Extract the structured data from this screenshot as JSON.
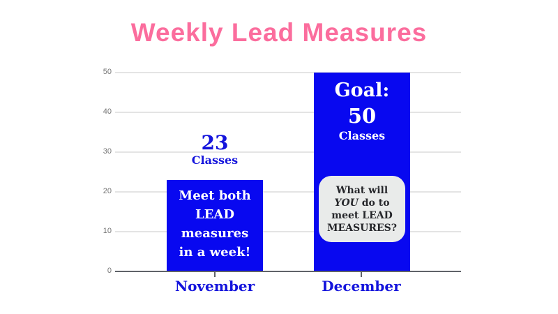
{
  "slide": {
    "title": "Weekly Lead Measures"
  },
  "chart_data": {
    "type": "bar",
    "title": "Weekly Lead Measures",
    "categories": [
      "November",
      "December"
    ],
    "values": [
      23,
      50
    ],
    "ylim": [
      0,
      50
    ],
    "yticks": [
      0,
      10,
      20,
      30,
      40,
      50
    ],
    "grid": true,
    "legend": false,
    "annotations": [
      {
        "category": "November",
        "above_bar": "23 Classes",
        "inside_bar": "Meet both LEAD measures in a week!"
      },
      {
        "category": "December",
        "inside_bar_top": "Goal: 50 Classes",
        "inside_bar_bubble": "What will YOU do to meet LEAD MEASURES?"
      }
    ]
  },
  "november": {
    "value_label": "23",
    "unit_label": "Classes",
    "message": "Meet both LEAD measures in a week!",
    "axis_label": "November"
  },
  "december": {
    "goal_label": "Goal:",
    "goal_value": "50",
    "goal_unit": "Classes",
    "bubble": {
      "before": "What will",
      "italic": "YOU",
      "after": "do to meet LEAD MEASURES?"
    },
    "axis_label": "December"
  },
  "colors": {
    "title_pink": "#FB6D9D",
    "bar_blue": "#0808F0",
    "label_blue": "#1414DC",
    "grid": "#E4E4E4",
    "axis": "#5F6368",
    "tick_label": "#757575",
    "bubble_bg": "#E9EBEA",
    "bubble_text": "#26272B"
  }
}
